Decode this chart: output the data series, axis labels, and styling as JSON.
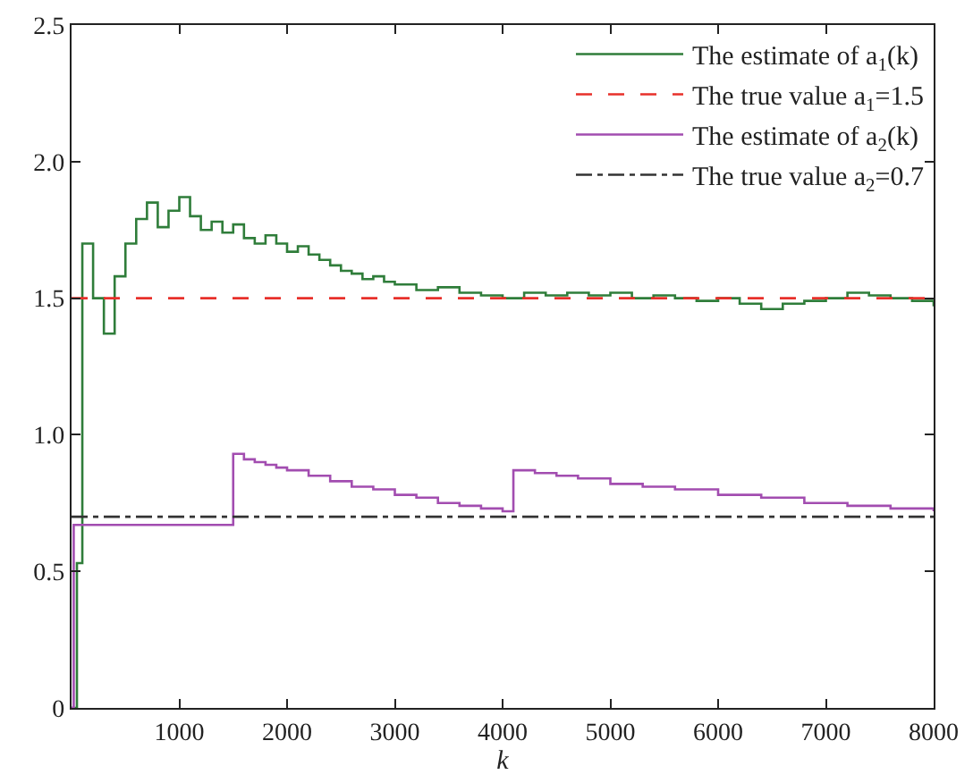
{
  "chart_data": {
    "type": "step",
    "xlabel": "k",
    "xlim": [
      0,
      8000
    ],
    "ylim": [
      0,
      2.5
    ],
    "xticks": [
      1000,
      2000,
      3000,
      4000,
      5000,
      6000,
      7000,
      8000
    ],
    "yticks": [
      0,
      {
        "value": 0.5,
        "label": "0.5"
      },
      {
        "value": 1,
        "label": "1.0"
      },
      {
        "value": 1.5,
        "label": "1.5"
      },
      {
        "value": 2,
        "label": "2.0"
      },
      {
        "value": 2.5,
        "label": "2.5"
      }
    ],
    "legend": "top right",
    "marker": "none",
    "series": [
      {
        "name": "The estimate of a$_{1}$(k)",
        "color": "#2f7d3a",
        "line_style": "solid",
        "x": [
          0,
          50,
          100,
          200,
          300,
          400,
          500,
          600,
          700,
          800,
          900,
          1000,
          1100,
          1200,
          1300,
          1400,
          1500,
          1600,
          1700,
          1800,
          1900,
          2000,
          2100,
          2200,
          2300,
          2400,
          2500,
          2600,
          2700,
          2800,
          2900,
          3000,
          3200,
          3400,
          3600,
          3800,
          4000,
          4200,
          4400,
          4600,
          4800,
          5000,
          5200,
          5400,
          5600,
          5800,
          6000,
          6200,
          6400,
          6600,
          6800,
          7000,
          7200,
          7400,
          7600,
          7800,
          8000
        ],
        "values": [
          0,
          0.53,
          1.7,
          1.5,
          1.37,
          1.58,
          1.7,
          1.79,
          1.85,
          1.76,
          1.82,
          1.87,
          1.8,
          1.75,
          1.78,
          1.74,
          1.77,
          1.72,
          1.7,
          1.73,
          1.7,
          1.67,
          1.69,
          1.66,
          1.64,
          1.62,
          1.6,
          1.59,
          1.57,
          1.58,
          1.56,
          1.55,
          1.53,
          1.54,
          1.52,
          1.51,
          1.5,
          1.52,
          1.51,
          1.52,
          1.51,
          1.52,
          1.5,
          1.51,
          1.5,
          1.49,
          1.5,
          1.48,
          1.46,
          1.48,
          1.49,
          1.5,
          1.52,
          1.51,
          1.5,
          1.49,
          1.47
        ]
      },
      {
        "name": "The true value a$_{1}$=1.5",
        "type": "line",
        "color": "#e8302a",
        "line_style": "dashed",
        "x": [
          0,
          8000
        ],
        "values": [
          1.5,
          1.5
        ]
      },
      {
        "name": "The estimate of a$_{2}$(k)",
        "color": "#a24db0",
        "line_style": "solid",
        "x": [
          0,
          20,
          1500,
          1600,
          1700,
          1800,
          1900,
          2000,
          2200,
          2400,
          2600,
          2800,
          3000,
          3200,
          3400,
          3600,
          3800,
          4000,
          4100,
          4300,
          4500,
          4700,
          5000,
          5300,
          5600,
          6000,
          6400,
          6800,
          7200,
          7600,
          8000
        ],
        "values": [
          0,
          0.67,
          0.93,
          0.91,
          0.9,
          0.89,
          0.88,
          0.87,
          0.85,
          0.83,
          0.81,
          0.8,
          0.78,
          0.77,
          0.75,
          0.74,
          0.73,
          0.72,
          0.87,
          0.86,
          0.85,
          0.84,
          0.82,
          0.81,
          0.8,
          0.78,
          0.77,
          0.75,
          0.74,
          0.73,
          0.72
        ]
      },
      {
        "name": "The true value a$_{2}$=0.7",
        "type": "line",
        "color": "#333333",
        "line_style": "dashdot",
        "x": [
          0,
          8000
        ],
        "values": [
          0.7,
          0.7
        ]
      }
    ]
  }
}
